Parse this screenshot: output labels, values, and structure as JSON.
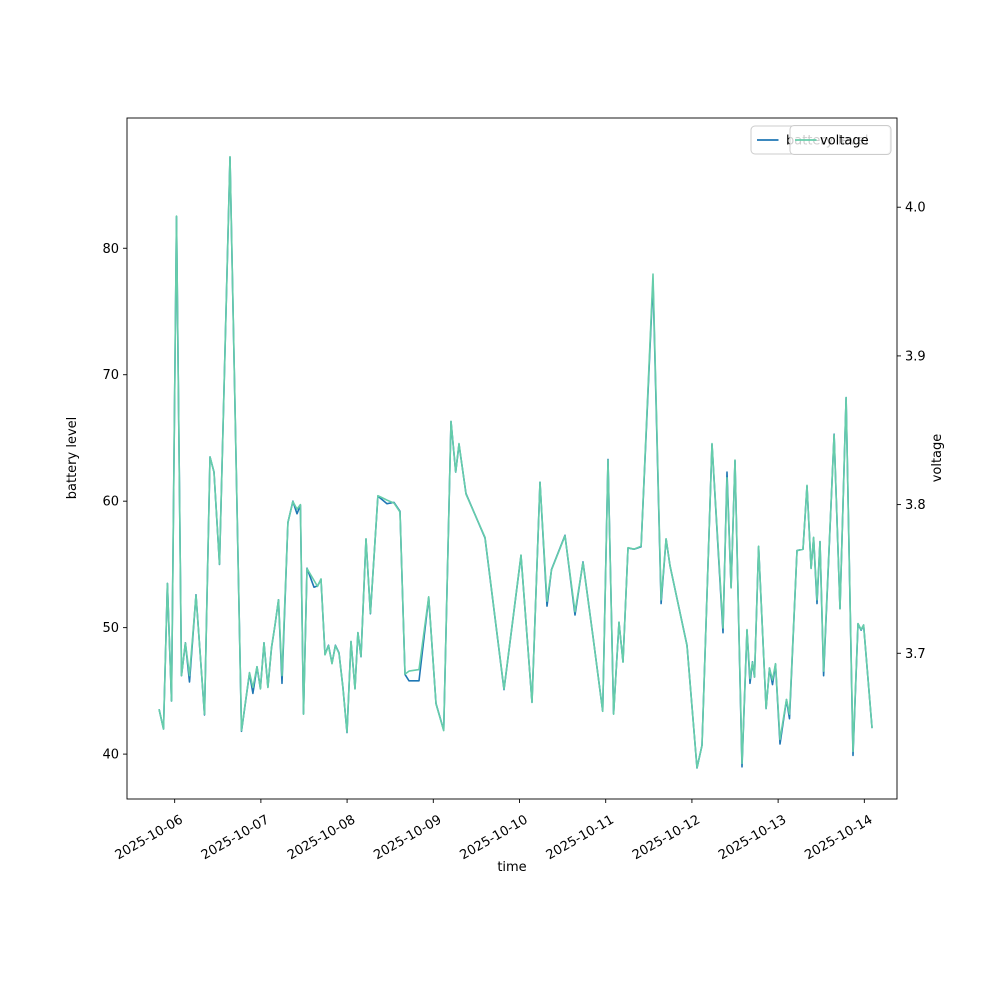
{
  "figure": {
    "background": "#ffffff"
  },
  "axes": {
    "xlabel": "time",
    "ylabel_left": "battery level",
    "ylabel_right": "voltage"
  },
  "legend": {
    "battery_label": "battery level",
    "voltage_label": "voltage",
    "battery_color": "#1f77b4",
    "voltage_color": "#66cdaa"
  },
  "chart_data": {
    "type": "line",
    "title": "",
    "xlabel": "time",
    "ylabel_left": "battery level",
    "ylabel_right": "voltage",
    "x_unit": "days since 2025-10-06 00:00",
    "x_tick_labels": [
      "2025-10-06",
      "2025-10-07",
      "2025-10-08",
      "2025-10-09",
      "2025-10-10",
      "2025-10-11",
      "2025-10-12",
      "2025-10-13",
      "2025-10-14"
    ],
    "x_tick_days": [
      0,
      1,
      2,
      3,
      4,
      5,
      6,
      7,
      8
    ],
    "xlim": [
      -0.553,
      8.379
    ],
    "ylim_left": [
      36.45,
      90.3
    ],
    "yticks_left": [
      40,
      50,
      60,
      70,
      80
    ],
    "ylim_right": [
      3.602,
      4.06
    ],
    "yticks_right": [
      3.7,
      3.8,
      3.9,
      4.0
    ],
    "grid": false,
    "legend_position": "upper right",
    "series": [
      {
        "name": "battery level",
        "color": "#1f77b4",
        "axis": "left"
      },
      {
        "name": "voltage",
        "color": "#66cdaa",
        "axis": "right"
      }
    ],
    "points": [
      [
        -0.179,
        43.5,
        3.662
      ],
      [
        -0.13,
        42.0,
        3.649
      ],
      [
        -0.084,
        53.5,
        3.747
      ],
      [
        -0.037,
        44.2,
        3.668
      ],
      [
        0.021,
        82.5,
        3.994
      ],
      [
        0.079,
        46.2,
        3.685
      ],
      [
        0.125,
        48.8,
        3.707
      ],
      [
        0.172,
        45.7,
        3.685
      ],
      [
        0.247,
        52.6,
        3.739
      ],
      [
        0.346,
        43.1,
        3.659
      ],
      [
        0.41,
        63.5,
        3.832
      ],
      [
        0.456,
        62.3,
        3.822
      ],
      [
        0.52,
        55.0,
        3.76
      ],
      [
        0.642,
        87.2,
        4.034
      ],
      [
        0.775,
        41.8,
        3.648
      ],
      [
        0.827,
        44.4,
        3.67
      ],
      [
        0.868,
        46.4,
        3.687
      ],
      [
        0.908,
        44.8,
        3.677
      ],
      [
        0.955,
        46.9,
        3.691
      ],
      [
        0.995,
        45.2,
        3.676
      ],
      [
        1.036,
        48.8,
        3.707
      ],
      [
        1.082,
        45.3,
        3.677
      ],
      [
        1.123,
        48.4,
        3.704
      ],
      [
        1.164,
        50.2,
        3.719
      ],
      [
        1.204,
        52.2,
        3.736
      ],
      [
        1.245,
        45.6,
        3.685
      ],
      [
        1.314,
        58.3,
        3.788
      ],
      [
        1.372,
        60.0,
        3.802
      ],
      [
        1.419,
        59.0,
        3.797
      ],
      [
        1.459,
        59.7,
        3.8
      ],
      [
        1.494,
        43.2,
        3.659
      ],
      [
        1.535,
        54.7,
        3.757
      ],
      [
        1.616,
        53.2,
        3.749
      ],
      [
        1.657,
        53.3,
        3.745
      ],
      [
        1.697,
        53.8,
        3.75
      ],
      [
        1.744,
        47.9,
        3.699
      ],
      [
        1.784,
        48.6,
        3.705
      ],
      [
        1.825,
        47.2,
        3.693
      ],
      [
        1.865,
        48.6,
        3.705
      ],
      [
        1.906,
        48.0,
        3.7
      ],
      [
        1.952,
        45.3,
        3.677
      ],
      [
        1.999,
        41.7,
        3.647
      ],
      [
        2.045,
        48.9,
        3.708
      ],
      [
        2.092,
        45.2,
        3.676
      ],
      [
        2.126,
        49.6,
        3.714
      ],
      [
        2.161,
        47.7,
        3.698
      ],
      [
        2.219,
        57.0,
        3.777
      ],
      [
        2.271,
        51.1,
        3.727
      ],
      [
        2.358,
        60.4,
        3.806
      ],
      [
        2.463,
        59.8,
        3.803
      ],
      [
        2.544,
        59.9,
        3.801
      ],
      [
        2.614,
        59.2,
        3.795
      ],
      [
        2.672,
        46.3,
        3.686
      ],
      [
        2.718,
        45.8,
        3.688
      ],
      [
        2.834,
        45.8,
        3.689
      ],
      [
        2.947,
        52.4,
        3.738
      ],
      [
        3.031,
        44.0,
        3.666
      ],
      [
        3.121,
        41.9,
        3.648
      ],
      [
        3.205,
        66.3,
        3.856
      ],
      [
        3.26,
        62.3,
        3.822
      ],
      [
        3.298,
        64.5,
        3.841
      ],
      [
        3.379,
        60.6,
        3.807
      ],
      [
        3.6,
        57.1,
        3.778
      ],
      [
        3.82,
        45.1,
        3.676
      ],
      [
        4.017,
        55.7,
        3.766
      ],
      [
        4.145,
        44.1,
        3.667
      ],
      [
        4.238,
        61.5,
        3.815
      ],
      [
        4.319,
        51.7,
        3.735
      ],
      [
        4.371,
        54.6,
        3.756
      ],
      [
        4.528,
        57.3,
        3.779
      ],
      [
        4.644,
        51.0,
        3.728
      ],
      [
        4.737,
        55.2,
        3.761
      ],
      [
        4.853,
        49.3,
        3.711
      ],
      [
        4.965,
        43.4,
        3.661
      ],
      [
        5.027,
        63.3,
        3.83
      ],
      [
        5.091,
        43.2,
        3.659
      ],
      [
        5.154,
        50.4,
        3.721
      ],
      [
        5.201,
        47.3,
        3.694
      ],
      [
        5.259,
        56.3,
        3.771
      ],
      [
        5.328,
        56.2,
        3.77
      ],
      [
        5.41,
        56.4,
        3.772
      ],
      [
        5.549,
        77.4,
        3.955
      ],
      [
        5.642,
        51.9,
        3.736
      ],
      [
        5.7,
        57.0,
        3.777
      ],
      [
        5.746,
        54.9,
        3.759
      ],
      [
        5.943,
        48.6,
        3.705
      ],
      [
        6.059,
        38.9,
        3.623
      ],
      [
        6.117,
        40.7,
        3.638
      ],
      [
        6.233,
        64.5,
        3.841
      ],
      [
        6.361,
        49.6,
        3.717
      ],
      [
        6.407,
        62.3,
        3.818
      ],
      [
        6.454,
        53.2,
        3.744
      ],
      [
        6.5,
        63.2,
        3.83
      ],
      [
        6.581,
        39.0,
        3.626
      ],
      [
        6.639,
        49.8,
        3.716
      ],
      [
        6.674,
        45.6,
        3.683
      ],
      [
        6.703,
        47.3,
        3.694
      ],
      [
        6.726,
        46.1,
        3.684
      ],
      [
        6.773,
        56.4,
        3.772
      ],
      [
        6.86,
        43.6,
        3.663
      ],
      [
        6.9,
        46.8,
        3.69
      ],
      [
        6.935,
        45.5,
        3.682
      ],
      [
        6.97,
        47.1,
        3.693
      ],
      [
        7.022,
        40.8,
        3.642
      ],
      [
        7.097,
        44.3,
        3.669
      ],
      [
        7.132,
        42.8,
        3.659
      ],
      [
        7.219,
        56.1,
        3.769
      ],
      [
        7.289,
        56.2,
        3.77
      ],
      [
        7.335,
        61.2,
        3.813
      ],
      [
        7.382,
        54.7,
        3.757
      ],
      [
        7.411,
        57.1,
        3.778
      ],
      [
        7.451,
        51.9,
        3.736
      ],
      [
        7.486,
        56.8,
        3.775
      ],
      [
        7.527,
        46.2,
        3.688
      ],
      [
        7.649,
        65.3,
        3.847
      ],
      [
        7.718,
        51.5,
        3.73
      ],
      [
        7.788,
        68.2,
        3.872
      ],
      [
        7.869,
        39.9,
        3.634
      ],
      [
        7.927,
        50.3,
        3.72
      ],
      [
        7.962,
        49.8,
        3.716
      ],
      [
        7.991,
        50.2,
        3.719
      ],
      [
        8.089,
        42.1,
        3.65
      ]
    ]
  }
}
